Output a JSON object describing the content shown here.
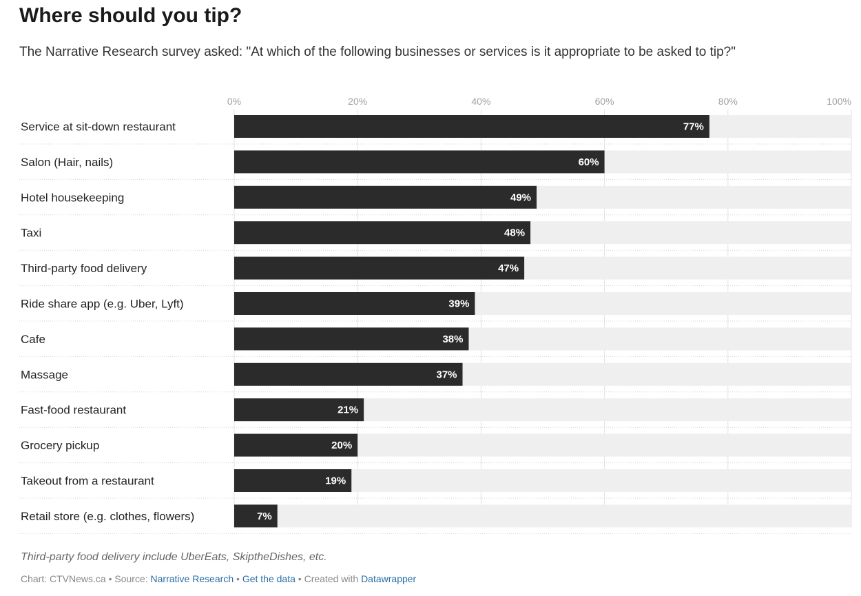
{
  "colors": {
    "bar": "#2b2b2b",
    "track": "#efefef",
    "value_text": "#ffffff",
    "link": "#2a6ea6"
  },
  "chart_data": {
    "type": "bar",
    "orientation": "horizontal",
    "title": "Where should you tip?",
    "subtitle": "The Narrative Research survey asked: \"At which of the following businesses or services is it appropriate to be asked to tip?\"",
    "xlim": [
      0,
      100
    ],
    "ticks": [
      "0%",
      "20%",
      "40%",
      "60%",
      "80%",
      "100%"
    ],
    "tick_values": [
      0,
      20,
      40,
      60,
      80,
      100
    ],
    "categories": [
      "Service at sit-down restaurant",
      "Salon (Hair, nails)",
      "Hotel housekeeping",
      "Taxi",
      "Third-party food delivery",
      "Ride share app (e.g. Uber, Lyft)",
      "Cafe",
      "Massage",
      "Fast-food restaurant",
      "Grocery pickup",
      "Takeout from a restaurant",
      "Retail store (e.g. clothes, flowers)"
    ],
    "values": [
      77,
      60,
      49,
      48,
      47,
      39,
      38,
      37,
      21,
      20,
      19,
      7
    ],
    "value_labels": [
      "77%",
      "60%",
      "49%",
      "48%",
      "47%",
      "39%",
      "38%",
      "37%",
      "21%",
      "20%",
      "19%",
      "7%"
    ]
  },
  "notes": "Third-party food delivery include UberEats, SkiptheDishes, etc.",
  "footer": {
    "chart_prefix": "Chart: CTVNews.ca",
    "source_prefix": "Source:",
    "source_link": "Narrative Research",
    "get_data": "Get the data",
    "created_prefix": "Created with",
    "created_link": "Datawrapper",
    "separator": "•"
  }
}
